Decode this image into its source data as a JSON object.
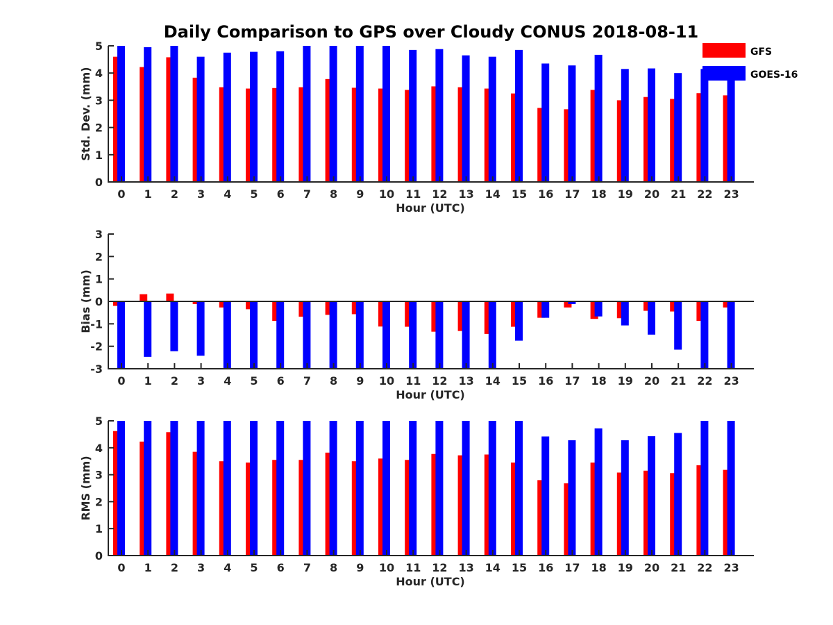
{
  "colors": {
    "gfs": "#ff0000",
    "goes": "#0000ff",
    "axis": "#262626"
  },
  "chart_data": {
    "type": "bar",
    "title": "Daily Comparison to GPS over Cloudy CONUS 2018-08-11",
    "legend": {
      "placement": "top-right",
      "entries": [
        {
          "name": "GFS",
          "color": "#ff0000"
        },
        {
          "name": "GOES-16",
          "color": "#0000ff"
        }
      ]
    },
    "categories": [
      "0",
      "1",
      "2",
      "3",
      "4",
      "5",
      "6",
      "7",
      "8",
      "9",
      "10",
      "11",
      "12",
      "13",
      "14",
      "15",
      "16",
      "17",
      "18",
      "19",
      "20",
      "21",
      "22",
      "23"
    ],
    "panels": [
      {
        "ylabel": "Std. Dev. (mm)",
        "xlabel": "Hour (UTC)",
        "ylim": [
          0,
          5
        ],
        "yticks": [
          0,
          1,
          2,
          3,
          4,
          5
        ],
        "zero_line": false,
        "series": [
          {
            "name": "GFS",
            "values": [
              4.6,
              4.22,
              4.58,
              3.83,
              3.48,
              3.43,
              3.45,
              3.48,
              3.78,
              3.46,
              3.43,
              3.38,
              3.51,
              3.48,
              3.43,
              3.25,
              2.72,
              2.67,
              3.38,
              3.0,
              3.12,
              3.05,
              3.26,
              3.18
            ]
          },
          {
            "name": "GOES-16",
            "values": [
              5.0,
              4.95,
              5.0,
              4.6,
              4.75,
              4.78,
              4.8,
              5.0,
              5.0,
              5.0,
              5.0,
              4.85,
              4.88,
              4.65,
              4.6,
              4.85,
              4.35,
              4.28,
              4.67,
              4.15,
              4.17,
              4.0,
              4.15,
              4.0
            ]
          }
        ]
      },
      {
        "ylabel": "Bias (mm)",
        "xlabel": "Hour (UTC)",
        "ylim": [
          -3,
          3
        ],
        "yticks": [
          -3,
          -2,
          -1,
          0,
          1,
          2,
          3
        ],
        "zero_line": true,
        "series": [
          {
            "name": "GFS",
            "values": [
              -0.2,
              0.32,
              0.35,
              -0.12,
              -0.27,
              -0.35,
              -0.87,
              -0.68,
              -0.6,
              -0.57,
              -1.12,
              -1.13,
              -1.35,
              -1.32,
              -1.45,
              -1.13,
              -0.73,
              -0.27,
              -0.78,
              -0.75,
              -0.42,
              -0.45,
              -0.87,
              -0.27
            ]
          },
          {
            "name": "GOES-16",
            "values": [
              -3.0,
              -2.47,
              -2.22,
              -2.42,
              -3.0,
              -3.0,
              -3.0,
              -3.0,
              -3.0,
              -3.0,
              -3.0,
              -3.0,
              -3.0,
              -3.0,
              -3.0,
              -1.75,
              -0.73,
              -0.12,
              -0.67,
              -1.07,
              -1.48,
              -2.15,
              -3.0,
              -3.0
            ]
          }
        ]
      },
      {
        "ylabel": "RMS (mm)",
        "xlabel": "Hour (UTC)",
        "ylim": [
          0,
          5
        ],
        "yticks": [
          0,
          1,
          2,
          3,
          4,
          5
        ],
        "zero_line": false,
        "series": [
          {
            "name": "GFS",
            "values": [
              4.62,
              4.23,
              4.58,
              3.85,
              3.5,
              3.45,
              3.55,
              3.55,
              3.82,
              3.5,
              3.6,
              3.55,
              3.77,
              3.72,
              3.75,
              3.45,
              2.8,
              2.68,
              3.45,
              3.08,
              3.15,
              3.06,
              3.35,
              3.18
            ]
          },
          {
            "name": "GOES-16",
            "values": [
              5.0,
              5.0,
              5.0,
              5.0,
              5.0,
              5.0,
              5.0,
              5.0,
              5.0,
              5.0,
              5.0,
              5.0,
              5.0,
              5.0,
              5.0,
              5.0,
              4.42,
              4.28,
              4.72,
              4.28,
              4.43,
              4.55,
              5.0,
              5.0
            ]
          }
        ]
      }
    ]
  }
}
